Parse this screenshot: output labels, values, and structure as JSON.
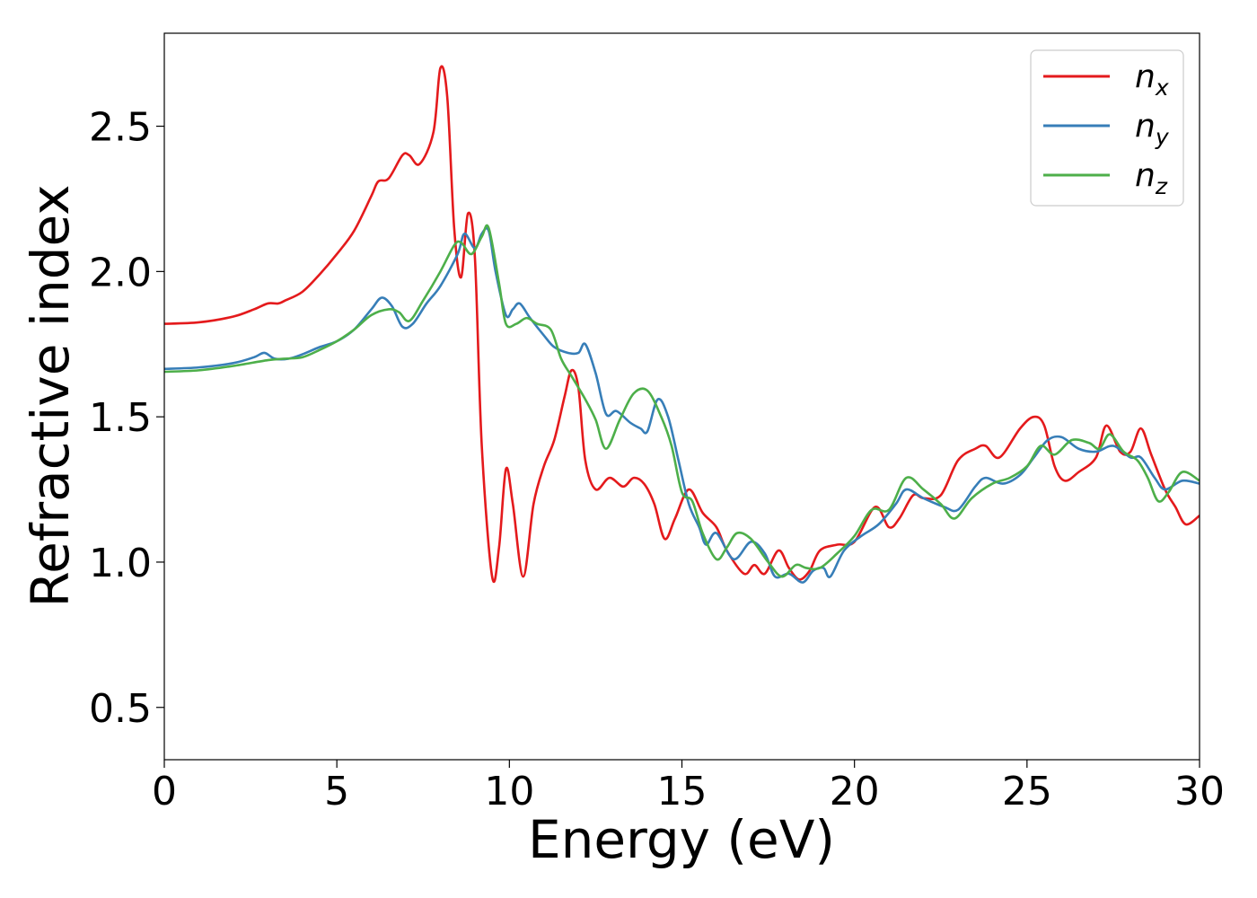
{
  "chart_data": {
    "type": "line",
    "title": "",
    "xlabel": "Energy (eV)",
    "ylabel": "Refractive index",
    "xlim": [
      0,
      30
    ],
    "ylim": [
      0.32,
      2.82
    ],
    "xticks": [
      0,
      5,
      10,
      15,
      20,
      25,
      30
    ],
    "xtick_labels": [
      "0",
      "5",
      "10",
      "15",
      "20",
      "25",
      "30"
    ],
    "yticks": [
      0.5,
      1.0,
      1.5,
      2.0,
      2.5
    ],
    "ytick_labels": [
      "0.5",
      "1.0",
      "1.5",
      "2.0",
      "2.5"
    ],
    "grid": false,
    "legend_position": "top-right",
    "series": [
      {
        "name_base": "n",
        "name_sub": "x",
        "color": "#e41a1c",
        "points": [
          [
            0,
            1.82
          ],
          [
            1,
            1.825
          ],
          [
            2,
            1.845
          ],
          [
            2.6,
            1.87
          ],
          [
            3,
            1.89
          ],
          [
            3.3,
            1.89
          ],
          [
            3.5,
            1.9
          ],
          [
            4,
            1.93
          ],
          [
            4.5,
            1.99
          ],
          [
            5,
            2.06
          ],
          [
            5.5,
            2.14
          ],
          [
            6,
            2.26
          ],
          [
            6.2,
            2.31
          ],
          [
            6.5,
            2.32
          ],
          [
            6.9,
            2.4
          ],
          [
            7.1,
            2.4
          ],
          [
            7.4,
            2.37
          ],
          [
            7.8,
            2.48
          ],
          [
            8,
            2.7
          ],
          [
            8.2,
            2.6
          ],
          [
            8.4,
            2.15
          ],
          [
            8.6,
            1.98
          ],
          [
            8.8,
            2.2
          ],
          [
            9,
            2.05
          ],
          [
            9.2,
            1.4
          ],
          [
            9.5,
            0.95
          ],
          [
            9.7,
            1.05
          ],
          [
            9.9,
            1.32
          ],
          [
            10.1,
            1.2
          ],
          [
            10.4,
            0.95
          ],
          [
            10.7,
            1.2
          ],
          [
            11,
            1.33
          ],
          [
            11.3,
            1.42
          ],
          [
            11.6,
            1.57
          ],
          [
            11.8,
            1.66
          ],
          [
            12,
            1.6
          ],
          [
            12.2,
            1.35
          ],
          [
            12.5,
            1.25
          ],
          [
            12.9,
            1.29
          ],
          [
            13.3,
            1.26
          ],
          [
            13.6,
            1.29
          ],
          [
            13.9,
            1.27
          ],
          [
            14.2,
            1.2
          ],
          [
            14.5,
            1.08
          ],
          [
            14.8,
            1.15
          ],
          [
            15.2,
            1.25
          ],
          [
            15.6,
            1.17
          ],
          [
            16,
            1.12
          ],
          [
            16.3,
            1.04
          ],
          [
            16.8,
            0.96
          ],
          [
            17.1,
            0.99
          ],
          [
            17.4,
            0.96
          ],
          [
            17.8,
            1.04
          ],
          [
            18.1,
            0.98
          ],
          [
            18.4,
            0.94
          ],
          [
            18.7,
            0.97
          ],
          [
            19,
            1.04
          ],
          [
            19.5,
            1.06
          ],
          [
            20,
            1.07
          ],
          [
            20.6,
            1.19
          ],
          [
            21,
            1.12
          ],
          [
            21.3,
            1.15
          ],
          [
            21.7,
            1.23
          ],
          [
            22,
            1.22
          ],
          [
            22.5,
            1.23
          ],
          [
            23,
            1.35
          ],
          [
            23.5,
            1.39
          ],
          [
            23.8,
            1.4
          ],
          [
            24.2,
            1.36
          ],
          [
            24.8,
            1.46
          ],
          [
            25.2,
            1.5
          ],
          [
            25.5,
            1.47
          ],
          [
            25.8,
            1.33
          ],
          [
            26.1,
            1.28
          ],
          [
            26.5,
            1.31
          ],
          [
            27,
            1.36
          ],
          [
            27.3,
            1.47
          ],
          [
            27.7,
            1.38
          ],
          [
            28,
            1.38
          ],
          [
            28.3,
            1.46
          ],
          [
            28.6,
            1.37
          ],
          [
            29,
            1.25
          ],
          [
            29.3,
            1.19
          ],
          [
            29.6,
            1.13
          ],
          [
            30,
            1.16
          ]
        ]
      },
      {
        "name_base": "n",
        "name_sub": "y",
        "color": "#377eb8",
        "points": [
          [
            0,
            1.665
          ],
          [
            1,
            1.67
          ],
          [
            2,
            1.685
          ],
          [
            2.6,
            1.705
          ],
          [
            2.9,
            1.72
          ],
          [
            3.2,
            1.7
          ],
          [
            3.6,
            1.7
          ],
          [
            4,
            1.715
          ],
          [
            4.5,
            1.74
          ],
          [
            5,
            1.76
          ],
          [
            5.5,
            1.8
          ],
          [
            6,
            1.87
          ],
          [
            6.3,
            1.91
          ],
          [
            6.6,
            1.88
          ],
          [
            6.9,
            1.81
          ],
          [
            7.2,
            1.82
          ],
          [
            7.6,
            1.89
          ],
          [
            8,
            1.95
          ],
          [
            8.5,
            2.06
          ],
          [
            8.7,
            2.13
          ],
          [
            9,
            2.08
          ],
          [
            9.2,
            2.13
          ],
          [
            9.4,
            2.14
          ],
          [
            9.6,
            2.0
          ],
          [
            9.9,
            1.85
          ],
          [
            10.1,
            1.87
          ],
          [
            10.3,
            1.89
          ],
          [
            10.6,
            1.84
          ],
          [
            11,
            1.78
          ],
          [
            11.3,
            1.74
          ],
          [
            11.7,
            1.72
          ],
          [
            12,
            1.72
          ],
          [
            12.2,
            1.75
          ],
          [
            12.5,
            1.65
          ],
          [
            12.8,
            1.51
          ],
          [
            13.1,
            1.52
          ],
          [
            13.5,
            1.48
          ],
          [
            13.8,
            1.46
          ],
          [
            14,
            1.45
          ],
          [
            14.3,
            1.56
          ],
          [
            14.6,
            1.5
          ],
          [
            14.9,
            1.35
          ],
          [
            15.2,
            1.2
          ],
          [
            15.5,
            1.12
          ],
          [
            15.7,
            1.06
          ],
          [
            16,
            1.1
          ],
          [
            16.5,
            1.01
          ],
          [
            17,
            1.07
          ],
          [
            17.4,
            1.03
          ],
          [
            17.7,
            0.95
          ],
          [
            18.1,
            0.96
          ],
          [
            18.5,
            0.93
          ],
          [
            18.8,
            0.97
          ],
          [
            19.1,
            0.98
          ],
          [
            19.3,
            0.95
          ],
          [
            19.7,
            1.04
          ],
          [
            20.2,
            1.09
          ],
          [
            20.7,
            1.13
          ],
          [
            21.2,
            1.2
          ],
          [
            21.5,
            1.25
          ],
          [
            22,
            1.22
          ],
          [
            22.6,
            1.19
          ],
          [
            23,
            1.18
          ],
          [
            23.5,
            1.26
          ],
          [
            23.8,
            1.29
          ],
          [
            24.3,
            1.27
          ],
          [
            24.8,
            1.3
          ],
          [
            25.2,
            1.36
          ],
          [
            25.6,
            1.42
          ],
          [
            26,
            1.43
          ],
          [
            26.5,
            1.39
          ],
          [
            27,
            1.38
          ],
          [
            27.5,
            1.4
          ],
          [
            28,
            1.36
          ],
          [
            28.3,
            1.36
          ],
          [
            28.7,
            1.29
          ],
          [
            29,
            1.25
          ],
          [
            29.5,
            1.28
          ],
          [
            30,
            1.27
          ]
        ]
      },
      {
        "name_base": "n",
        "name_sub": "z",
        "color": "#4daf4a",
        "points": [
          [
            0,
            1.655
          ],
          [
            1,
            1.66
          ],
          [
            2,
            1.675
          ],
          [
            3,
            1.695
          ],
          [
            3.5,
            1.7
          ],
          [
            4,
            1.705
          ],
          [
            4.5,
            1.73
          ],
          [
            5,
            1.76
          ],
          [
            5.5,
            1.8
          ],
          [
            6,
            1.85
          ],
          [
            6.5,
            1.87
          ],
          [
            6.8,
            1.86
          ],
          [
            7.1,
            1.83
          ],
          [
            7.5,
            1.9
          ],
          [
            8,
            2.0
          ],
          [
            8.4,
            2.09
          ],
          [
            8.6,
            2.1
          ],
          [
            8.9,
            2.06
          ],
          [
            9.2,
            2.12
          ],
          [
            9.4,
            2.15
          ],
          [
            9.7,
            1.96
          ],
          [
            9.9,
            1.82
          ],
          [
            10.2,
            1.82
          ],
          [
            10.5,
            1.84
          ],
          [
            10.8,
            1.82
          ],
          [
            11.2,
            1.8
          ],
          [
            11.5,
            1.7
          ],
          [
            11.8,
            1.64
          ],
          [
            12.2,
            1.56
          ],
          [
            12.5,
            1.49
          ],
          [
            12.8,
            1.39
          ],
          [
            13.2,
            1.49
          ],
          [
            13.6,
            1.58
          ],
          [
            14,
            1.59
          ],
          [
            14.4,
            1.5
          ],
          [
            14.7,
            1.4
          ],
          [
            15,
            1.24
          ],
          [
            15.3,
            1.21
          ],
          [
            15.6,
            1.1
          ],
          [
            16,
            1.01
          ],
          [
            16.3,
            1.05
          ],
          [
            16.6,
            1.1
          ],
          [
            17,
            1.08
          ],
          [
            17.5,
            1.0
          ],
          [
            17.9,
            0.95
          ],
          [
            18.3,
            0.99
          ],
          [
            18.6,
            0.98
          ],
          [
            19,
            0.98
          ],
          [
            19.5,
            1.03
          ],
          [
            20,
            1.09
          ],
          [
            20.5,
            1.18
          ],
          [
            21,
            1.18
          ],
          [
            21.5,
            1.29
          ],
          [
            22,
            1.25
          ],
          [
            22.5,
            1.2
          ],
          [
            22.9,
            1.15
          ],
          [
            23.4,
            1.22
          ],
          [
            24,
            1.27
          ],
          [
            24.5,
            1.29
          ],
          [
            25,
            1.33
          ],
          [
            25.4,
            1.4
          ],
          [
            25.8,
            1.37
          ],
          [
            26.3,
            1.42
          ],
          [
            26.8,
            1.41
          ],
          [
            27.1,
            1.39
          ],
          [
            27.4,
            1.44
          ],
          [
            27.8,
            1.38
          ],
          [
            28.2,
            1.35
          ],
          [
            28.5,
            1.29
          ],
          [
            28.8,
            1.21
          ],
          [
            29.1,
            1.24
          ],
          [
            29.5,
            1.31
          ],
          [
            30,
            1.28
          ]
        ]
      }
    ]
  }
}
